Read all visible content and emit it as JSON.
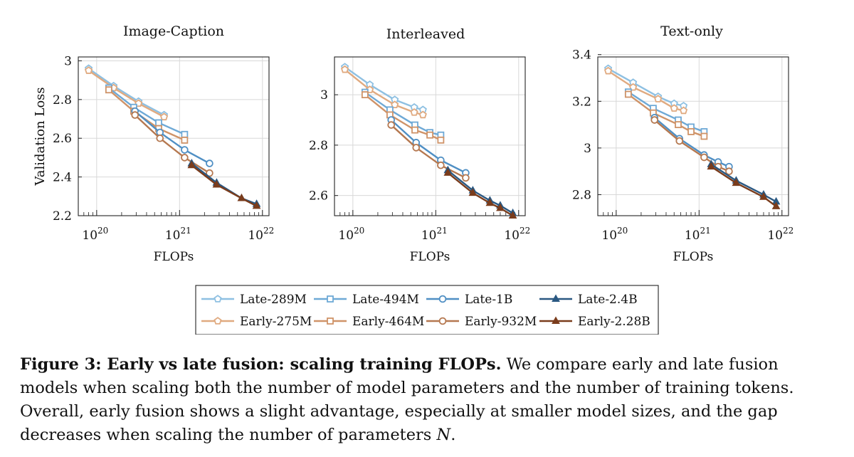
{
  "chart_data": [
    {
      "type": "line",
      "title": "Image-Caption",
      "xlabel": "FLOPs",
      "ylabel": "Validation Loss",
      "xscale": "log",
      "xlim": [
        6e+19,
        1.2e+22
      ],
      "ylim": [
        2.2,
        3.02
      ],
      "xticks": [
        {
          "value": 1e+20,
          "base": "10",
          "exp": "20"
        },
        {
          "value": 1e+21,
          "base": "10",
          "exp": "21"
        },
        {
          "value": 1e+22,
          "base": "10",
          "exp": "22"
        }
      ],
      "yticks": [
        {
          "value": 2.2,
          "label": "2.2"
        },
        {
          "value": 2.4,
          "label": "2.4"
        },
        {
          "value": 2.6,
          "label": "2.6"
        },
        {
          "value": 2.8,
          "label": "2.8"
        },
        {
          "value": 3.0,
          "label": "3"
        }
      ],
      "grid": true,
      "series": [
        {
          "name": "Late-289M",
          "x": [
            8e+19,
            1.6e+20,
            3.2e+20,
            6.5e+20
          ],
          "y": [
            2.96,
            2.87,
            2.79,
            2.72
          ]
        },
        {
          "name": "Early-275M",
          "x": [
            8e+19,
            1.6e+20,
            3.2e+20,
            6.5e+20
          ],
          "y": [
            2.95,
            2.86,
            2.78,
            2.71
          ]
        },
        {
          "name": "Late-494M",
          "x": [
            1.4e+20,
            2.8e+20,
            5.6e+20,
            1.15e+21
          ],
          "y": [
            2.86,
            2.76,
            2.68,
            2.62
          ]
        },
        {
          "name": "Early-464M",
          "x": [
            1.4e+20,
            2.8e+20,
            5.6e+20,
            1.15e+21
          ],
          "y": [
            2.85,
            2.74,
            2.65,
            2.59
          ]
        },
        {
          "name": "Late-1B",
          "x": [
            2.9e+20,
            5.8e+20,
            1.15e+21,
            2.3e+21
          ],
          "y": [
            2.74,
            2.63,
            2.54,
            2.47
          ]
        },
        {
          "name": "Early-932M",
          "x": [
            2.9e+20,
            5.8e+20,
            1.15e+21,
            2.3e+21
          ],
          "y": [
            2.72,
            2.6,
            2.5,
            2.42
          ]
        },
        {
          "name": "Late-2.4B",
          "x": [
            1.4e+21,
            2.8e+21,
            5.6e+21,
            8.5e+21
          ],
          "y": [
            2.47,
            2.37,
            2.29,
            2.26
          ]
        },
        {
          "name": "Early-2.28B",
          "x": [
            1.4e+21,
            2.8e+21,
            5.6e+21,
            8.5e+21
          ],
          "y": [
            2.46,
            2.36,
            2.29,
            2.25
          ]
        }
      ]
    },
    {
      "type": "line",
      "title": "Interleaved",
      "xlabel": "FLOPs",
      "ylabel": "",
      "xscale": "log",
      "xlim": [
        6e+19,
        1.2e+22
      ],
      "ylim": [
        2.52,
        3.15
      ],
      "xticks": [
        {
          "value": 1e+20,
          "base": "10",
          "exp": "20"
        },
        {
          "value": 1e+21,
          "base": "10",
          "exp": "21"
        },
        {
          "value": 1e+22,
          "base": "10",
          "exp": "22"
        }
      ],
      "yticks": [
        {
          "value": 2.6,
          "label": "2.6"
        },
        {
          "value": 2.8,
          "label": "2.8"
        },
        {
          "value": 3.0,
          "label": "3"
        }
      ],
      "grid": true,
      "series": [
        {
          "name": "Late-289M",
          "x": [
            8e+19,
            1.6e+20,
            3.2e+20,
            5.5e+20,
            7e+20
          ],
          "y": [
            3.11,
            3.04,
            2.98,
            2.95,
            2.94
          ]
        },
        {
          "name": "Early-275M",
          "x": [
            8e+19,
            1.6e+20,
            3.2e+20,
            5.5e+20,
            7e+20
          ],
          "y": [
            3.1,
            3.02,
            2.96,
            2.93,
            2.92
          ]
        },
        {
          "name": "Late-494M",
          "x": [
            1.4e+20,
            2.8e+20,
            5.6e+20,
            8.5e+20,
            1.15e+21
          ],
          "y": [
            3.01,
            2.94,
            2.88,
            2.85,
            2.84
          ]
        },
        {
          "name": "Early-464M",
          "x": [
            1.4e+20,
            2.8e+20,
            5.6e+20,
            8.5e+20,
            1.15e+21
          ],
          "y": [
            3.0,
            2.92,
            2.86,
            2.84,
            2.82
          ]
        },
        {
          "name": "Late-1B",
          "x": [
            2.9e+20,
            5.8e+20,
            1.15e+21,
            2.3e+21
          ],
          "y": [
            2.9,
            2.81,
            2.74,
            2.69
          ]
        },
        {
          "name": "Early-932M",
          "x": [
            2.9e+20,
            5.8e+20,
            1.15e+21,
            2.3e+21
          ],
          "y": [
            2.88,
            2.79,
            2.72,
            2.67
          ]
        },
        {
          "name": "Late-2.4B",
          "x": [
            1.4e+21,
            2.8e+21,
            4.5e+21,
            6e+21,
            8.5e+21
          ],
          "y": [
            2.7,
            2.62,
            2.58,
            2.56,
            2.53
          ]
        },
        {
          "name": "Early-2.28B",
          "x": [
            1.4e+21,
            2.8e+21,
            4.5e+21,
            6e+21,
            8.5e+21
          ],
          "y": [
            2.69,
            2.61,
            2.57,
            2.55,
            2.52
          ]
        }
      ]
    },
    {
      "type": "line",
      "title": "Text-only",
      "xlabel": "FLOPs",
      "ylabel": "",
      "xscale": "log",
      "xlim": [
        6e+19,
        1.2e+22
      ],
      "ylim": [
        2.71,
        3.39
      ],
      "xticks": [
        {
          "value": 1e+20,
          "base": "10",
          "exp": "20"
        },
        {
          "value": 1e+21,
          "base": "10",
          "exp": "21"
        },
        {
          "value": 1e+22,
          "base": "10",
          "exp": "22"
        }
      ],
      "yticks": [
        {
          "value": 2.8,
          "label": "2.8"
        },
        {
          "value": 3.0,
          "label": "3"
        },
        {
          "value": 3.2,
          "label": "3.2"
        },
        {
          "value": 3.4,
          "label": "3.4"
        }
      ],
      "grid": true,
      "series": [
        {
          "name": "Late-289M",
          "x": [
            8e+19,
            1.6e+20,
            3.2e+20,
            5e+20,
            6.5e+20
          ],
          "y": [
            3.34,
            3.28,
            3.22,
            3.19,
            3.18
          ]
        },
        {
          "name": "Early-275M",
          "x": [
            8e+19,
            1.6e+20,
            3.2e+20,
            5e+20,
            6.5e+20
          ],
          "y": [
            3.33,
            3.26,
            3.21,
            3.17,
            3.16
          ]
        },
        {
          "name": "Late-494M",
          "x": [
            1.4e+20,
            2.8e+20,
            5.6e+20,
            8e+20,
            1.15e+21
          ],
          "y": [
            3.24,
            3.17,
            3.12,
            3.09,
            3.07
          ]
        },
        {
          "name": "Early-464M",
          "x": [
            1.4e+20,
            2.8e+20,
            5.6e+20,
            8e+20,
            1.15e+21
          ],
          "y": [
            3.23,
            3.15,
            3.1,
            3.07,
            3.05
          ]
        },
        {
          "name": "Late-1B",
          "x": [
            2.9e+20,
            5.8e+20,
            1.15e+21,
            1.7e+21,
            2.3e+21
          ],
          "y": [
            3.13,
            3.04,
            2.97,
            2.94,
            2.92
          ]
        },
        {
          "name": "Early-932M",
          "x": [
            2.9e+20,
            5.8e+20,
            1.15e+21,
            1.7e+21,
            2.3e+21
          ],
          "y": [
            3.12,
            3.03,
            2.96,
            2.92,
            2.9
          ]
        },
        {
          "name": "Late-2.4B",
          "x": [
            1.4e+21,
            2.8e+21,
            6e+21,
            8.5e+21
          ],
          "y": [
            2.93,
            2.86,
            2.8,
            2.77
          ]
        },
        {
          "name": "Early-2.28B",
          "x": [
            1.4e+21,
            2.8e+21,
            6e+21,
            8.5e+21
          ],
          "y": [
            2.92,
            2.85,
            2.79,
            2.75
          ]
        }
      ]
    }
  ],
  "series_styles": [
    {
      "name": "Late-289M",
      "color": "#8ec0e2",
      "marker": "pentagon"
    },
    {
      "name": "Early-275M",
      "color": "#e0aa80",
      "marker": "pentagon"
    },
    {
      "name": "Late-494M",
      "color": "#6ea9d6",
      "marker": "square"
    },
    {
      "name": "Early-464M",
      "color": "#cf9368",
      "marker": "square"
    },
    {
      "name": "Late-1B",
      "color": "#4f8fc4",
      "marker": "circle"
    },
    {
      "name": "Early-932M",
      "color": "#b57850",
      "marker": "circle"
    },
    {
      "name": "Late-2.4B",
      "color": "#2a5882",
      "marker": "triangle"
    },
    {
      "name": "Early-2.28B",
      "color": "#7a3c1c",
      "marker": "triangle"
    }
  ],
  "legend": {
    "placement": "bottom-center",
    "rows": [
      [
        "Late-289M",
        "Late-494M",
        "Late-1B",
        "Late-2.4B"
      ],
      [
        "Early-275M",
        "Early-464M",
        "Early-932M",
        "Early-2.28B"
      ]
    ]
  },
  "caption": {
    "label": "Figure 3: Early vs late fusion: scaling training FLOPs.",
    "text_before_var": " We compare early and late fusion models when scaling both the number of model parameters and the number of training tokens. Overall, early fusion shows a slight advantage, especially at smaller model sizes, and the gap decreases when scaling the number of parameters ",
    "variable": "N",
    "text_after_var": "."
  }
}
